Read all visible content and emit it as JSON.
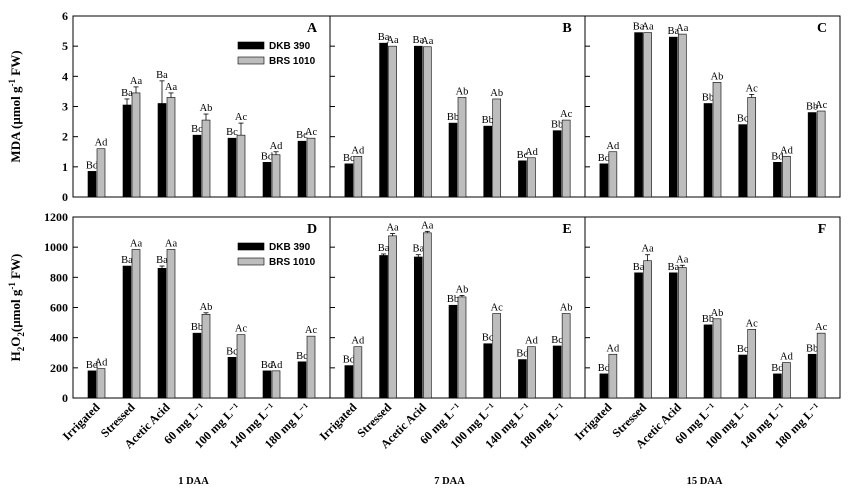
{
  "chart_data": {
    "type": "bar",
    "categories": [
      "Irrigated",
      "Stressed",
      "Acetic Acid",
      "60 mg L⁻¹",
      "100 mg L⁻¹",
      "140 mg L⁻¹",
      "180 mg L⁻¹"
    ],
    "legend": [
      "DKB 390",
      "BRS 1010"
    ],
    "series_colors": [
      "#000000",
      "#bdbdbd"
    ],
    "day_labels": [
      "1 DAA",
      "7 DAA",
      "15 DAA"
    ],
    "rows": [
      {
        "ylabel_main": "MDA (µmol g",
        "ylabel_sup": "-1",
        "ylabel_tail": " FW)",
        "ylim": [
          0,
          6
        ],
        "yticks": [
          0,
          1,
          2,
          3,
          4,
          5,
          6
        ],
        "panels": [
          {
            "letter": "A",
            "dkb": [
              0.85,
              3.05,
              3.1,
              2.05,
              1.95,
              1.15,
              1.85
            ],
            "brs": [
              1.6,
              3.45,
              3.3,
              2.55,
              2.05,
              1.4,
              1.95
            ],
            "dkb_err": [
              0,
              0.2,
              0.75,
              0,
              0,
              0,
              0
            ],
            "brs_err": [
              0,
              0.2,
              0.15,
              0.2,
              0.4,
              0.1,
              0
            ],
            "dkb_labels": [
              "Bd",
              "Ba",
              "Ba",
              "Bc",
              "Bc",
              "Bd",
              "Bc"
            ],
            "brs_labels": [
              "Ad",
              "Aa",
              "Aa",
              "Ab",
              "Ac",
              "Ad",
              "Ac"
            ],
            "legend": true
          },
          {
            "letter": "B",
            "dkb": [
              1.1,
              5.1,
              5.0,
              2.45,
              2.35,
              1.2,
              2.2
            ],
            "brs": [
              1.35,
              5.0,
              4.98,
              3.3,
              3.25,
              1.3,
              2.55
            ],
            "dkb_err": [
              0,
              0,
              0,
              0,
              0,
              0,
              0
            ],
            "brs_err": [
              0,
              0,
              0,
              0,
              0,
              0,
              0
            ],
            "dkb_labels": [
              "Bc",
              "Ba",
              "Ba",
              "Bb",
              "Bb",
              "Bc",
              "Bb"
            ],
            "brs_labels": [
              "Ad",
              "Aa",
              "Aa",
              "Ab",
              "Ab",
              "Ad",
              "Ac"
            ],
            "legend": false
          },
          {
            "letter": "C",
            "dkb": [
              1.1,
              5.45,
              5.3,
              3.1,
              2.4,
              1.15,
              2.8
            ],
            "brs": [
              1.5,
              5.45,
              5.4,
              3.8,
              3.3,
              1.35,
              2.85
            ],
            "dkb_err": [
              0,
              0,
              0,
              0,
              0,
              0,
              0
            ],
            "brs_err": [
              0,
              0,
              0,
              0,
              0.1,
              0,
              0
            ],
            "dkb_labels": [
              "Bd",
              "Ba",
              "Ba",
              "Bb",
              "Bc",
              "Bd",
              "Bb"
            ],
            "brs_labels": [
              "Ad",
              "Aa",
              "Aa",
              "Ab",
              "Ac",
              "Ad",
              "Ac"
            ],
            "legend": false
          }
        ]
      },
      {
        "ylabel_main": "H",
        "ylabel_sub": "2",
        "ylabel_mid": "O",
        "ylabel_sub2": "2",
        "ylabel_rest": "(µmol g",
        "ylabel_sup": "-1",
        "ylabel_tail": " FW)",
        "ylim": [
          0,
          1200
        ],
        "yticks": [
          0,
          200,
          400,
          600,
          800,
          1000,
          1200
        ],
        "panels": [
          {
            "letter": "D",
            "dkb": [
              180,
              875,
              860,
              430,
              270,
              180,
              240
            ],
            "brs": [
              195,
              985,
              985,
              555,
              420,
              180,
              410
            ],
            "dkb_err": [
              0,
              0,
              15,
              0,
              0,
              0,
              0
            ],
            "brs_err": [
              0,
              0,
              0,
              10,
              0,
              0,
              0
            ],
            "dkb_labels": [
              "Bd",
              "Ba",
              "Ba",
              "Bb",
              "Bc",
              "Bd",
              "Bc"
            ],
            "brs_labels": [
              "Ad",
              "Aa",
              "Aa",
              "Ab",
              "Ac",
              "Ad",
              "Ac"
            ],
            "legend": true
          },
          {
            "letter": "E",
            "dkb": [
              215,
              945,
              935,
              615,
              360,
              255,
              345
            ],
            "brs": [
              340,
              1075,
              1095,
              670,
              560,
              340,
              560
            ],
            "dkb_err": [
              0,
              10,
              15,
              0,
              0,
              0,
              0
            ],
            "brs_err": [
              0,
              15,
              10,
              10,
              0,
              0,
              0
            ],
            "dkb_labels": [
              "Bd",
              "Ba",
              "Ba",
              "Bb",
              "Bc",
              "Bd",
              "Bc"
            ],
            "brs_labels": [
              "Ad",
              "Aa",
              "Aa",
              "Ab",
              "Ac",
              "Ad",
              "Ab"
            ],
            "legend": false
          },
          {
            "letter": "F",
            "dkb": [
              160,
              830,
              830,
              485,
              285,
              160,
              290
            ],
            "brs": [
              290,
              910,
              865,
              525,
              455,
              235,
              430
            ],
            "dkb_err": [
              0,
              0,
              0,
              0,
              0,
              0,
              0
            ],
            "brs_err": [
              0,
              40,
              15,
              0,
              0,
              0,
              0
            ],
            "dkb_labels": [
              "Bd",
              "Ba",
              "Ba",
              "Bb",
              "Bc",
              "Bd",
              "Bb"
            ],
            "brs_labels": [
              "Ad",
              "Aa",
              "Aa",
              "Ab",
              "Ac",
              "Ad",
              "Ac"
            ],
            "legend": false
          }
        ]
      }
    ]
  }
}
